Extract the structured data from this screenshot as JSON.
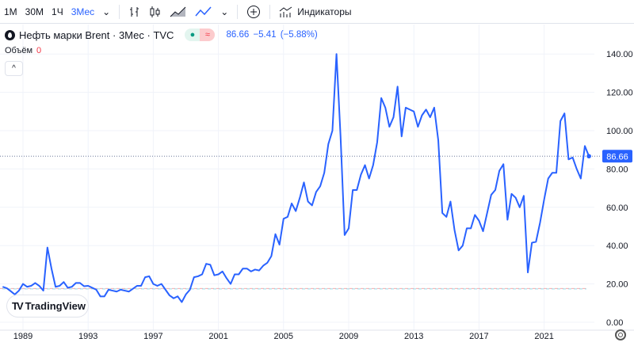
{
  "toolbar": {
    "intervals": [
      "1M",
      "30M",
      "1Ч",
      "3Мес"
    ],
    "active_interval": "3Мес",
    "indicators_label": "Индикаторы"
  },
  "legend": {
    "title": "Нефть марки Brent · 3Мес · TVC",
    "last": "86.66",
    "change": "−5.41",
    "change_pct": "(−5.88%)"
  },
  "volume": {
    "label": "Объём",
    "value": "0"
  },
  "branding": "TradingView",
  "colors": {
    "line": "#2962ff",
    "grid": "#f0f3fa",
    "accent": "#2962ff",
    "negative": "#f23645"
  },
  "chart_data": {
    "type": "line",
    "ylim": [
      0,
      145
    ],
    "yticks": [
      "0.00",
      "20.00",
      "40.00",
      "60.00",
      "80.00",
      "100.00",
      "120.00",
      "140.00"
    ],
    "xticks": [
      "1989",
      "1993",
      "1997",
      "2001",
      "2005",
      "2009",
      "2013",
      "2017",
      "2021"
    ],
    "last_price": 86.66,
    "last_price_label": "86.66",
    "start": "1987-Q4",
    "frequency": "quarterly",
    "values": [
      18.5,
      17.8,
      16.2,
      14.5,
      16.5,
      20,
      18.5,
      19,
      20.5,
      19,
      16.5,
      39,
      28,
      18.5,
      19,
      21,
      18,
      18.5,
      20.5,
      20.5,
      18.8,
      19,
      18,
      17,
      13.5,
      13.5,
      17,
      16.5,
      16,
      17,
      16.5,
      16,
      17.5,
      19,
      19,
      23.5,
      24,
      20,
      19,
      20,
      17,
      14,
      12.5,
      13.5,
      10.5,
      14.5,
      17,
      23.5,
      24,
      25,
      30.5,
      30,
      24.5,
      25,
      26.5,
      23,
      20,
      25,
      25,
      28,
      28,
      26.5,
      27.5,
      27,
      29.5,
      31,
      34.5,
      46,
      40.5,
      54,
      55,
      62,
      58,
      65,
      73,
      63,
      61,
      68,
      71,
      78,
      93,
      100,
      140,
      97,
      45.5,
      49,
      69,
      69,
      77,
      82,
      75,
      82,
      94,
      117,
      112,
      102,
      107,
      123,
      97,
      112,
      111,
      110,
      102,
      108,
      111,
      107,
      112,
      95,
      57,
      55,
      63,
      48,
      37.5,
      40,
      49,
      49,
      56,
      53,
      47.5,
      57,
      66.5,
      69,
      79,
      82.5,
      53.5,
      67,
      65,
      60,
      66,
      26,
      41.5,
      42,
      52,
      64,
      75,
      78,
      78,
      105,
      109,
      85,
      86,
      80,
      75,
      92,
      86.66
    ]
  }
}
